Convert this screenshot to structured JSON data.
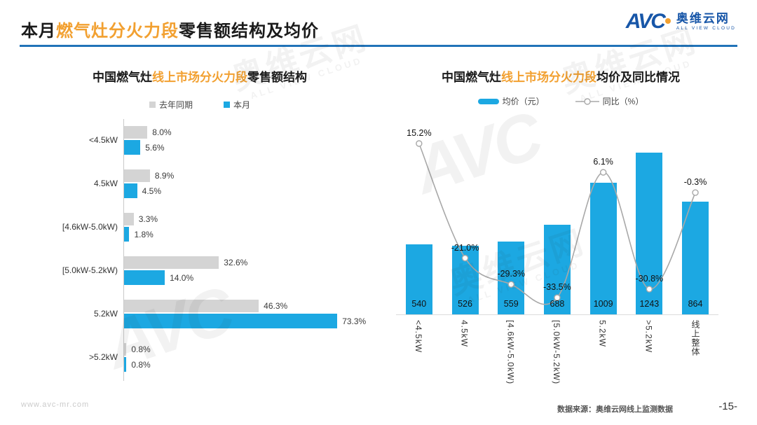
{
  "header": {
    "title_prefix": "本月",
    "title_highlight": "燃气灶分火力段",
    "title_suffix": "零售额结构及均价",
    "logo": {
      "avc": "AVC",
      "brand": "奥维云网",
      "tagline": "ALL VIEW CLOUD"
    }
  },
  "watermark": {
    "cn": "奥维云网",
    "en": "ALL VIEW CLOUD",
    "avc": "AVC"
  },
  "colors": {
    "blue": "#1CA8E2",
    "gray_bar": "#D4D4D4",
    "line_gray": "#A8A8A8",
    "orange": "#F2A030",
    "title_rule_blue": "#2173B8",
    "logo_blue": "#1756A8"
  },
  "footer": {
    "website": "www.avc-mr.com",
    "source": "数据来源：奥维云网线上监测数据",
    "page": "-15-"
  },
  "chart_data": [
    {
      "type": "bar",
      "orientation": "horizontal",
      "title_prefix": "中国燃气灶",
      "title_highlight": "线上市场分火力段",
      "title_suffix": "零售额结构",
      "categories": [
        "<4.5kW",
        "4.5kW",
        "[4.6kW-5.0kW)",
        "[5.0kW-5.2kW)",
        "5.2kW",
        ">5.2kW"
      ],
      "series": [
        {
          "name": "去年同期",
          "values": [
            8.0,
            8.9,
            3.3,
            32.6,
            46.3,
            0.8
          ]
        },
        {
          "name": "本月",
          "values": [
            5.6,
            4.5,
            1.8,
            14.0,
            73.3,
            0.8
          ]
        }
      ],
      "value_suffix": "%",
      "legend_position": "top",
      "grid": false
    },
    {
      "type": "bar+line",
      "title_prefix": "中国燃气灶",
      "title_highlight": "线上市场分火力段",
      "title_suffix": "均价及同比情况",
      "categories": [
        "<4.5kW",
        "4.5kW",
        "[4.6kW-5.0kW)",
        "[5.0kW-5.2kW)",
        "5.2kW",
        ">5.2kW",
        "线上整体"
      ],
      "bar_series": {
        "name": "均价（元）",
        "values": [
          540,
          526,
          559,
          688,
          1009,
          1243,
          864
        ]
      },
      "line_series": {
        "name": "同比（%）",
        "values": [
          15.2,
          -21.0,
          -29.3,
          -33.5,
          6.1,
          -30.8,
          -0.3
        ],
        "suffix": "%"
      },
      "legend_position": "top",
      "grid": false
    }
  ]
}
